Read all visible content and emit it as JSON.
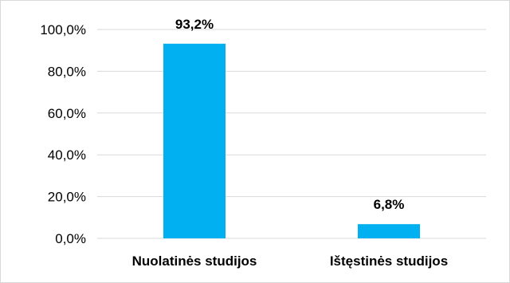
{
  "chart_data": {
    "type": "bar",
    "categories": [
      "Nuolatinės studijos",
      "Ištęstinės studijos"
    ],
    "values": [
      93.2,
      6.8
    ],
    "data_labels": [
      "93,2%",
      "6,8%"
    ],
    "y_tick_labels": [
      "0,0%",
      "20,0%",
      "40,0%",
      "60,0%",
      "80,0%",
      "100,0%"
    ],
    "y_ticks": [
      0,
      20,
      40,
      60,
      80,
      100
    ],
    "ylim": [
      0,
      100
    ],
    "title": "",
    "xlabel": "",
    "ylabel": "",
    "grid": true,
    "legend": "none",
    "bar_color": "#00b0f0"
  }
}
